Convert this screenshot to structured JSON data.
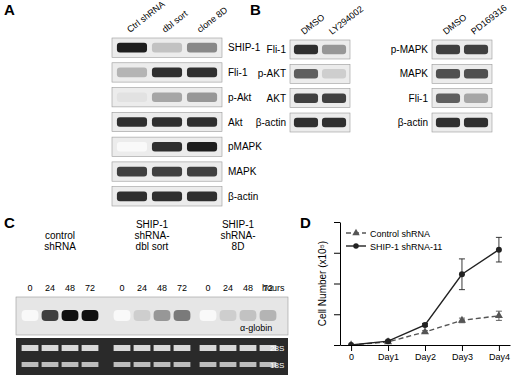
{
  "panels": {
    "A": {
      "label": "A",
      "lanes": [
        "Ctrl shRNA",
        "dbl sort",
        "clone 8D"
      ],
      "rows": [
        {
          "name": "SHIP-1",
          "bands": [
            0.9,
            0.35,
            0.55
          ]
        },
        {
          "name": "Fli-1",
          "bands": [
            0.4,
            0.85,
            0.85
          ]
        },
        {
          "name": "p-Akt",
          "bands": [
            0.2,
            0.45,
            0.5
          ]
        },
        {
          "name": "Akt",
          "bands": [
            0.85,
            0.85,
            0.85
          ]
        },
        {
          "name": "pMAPK",
          "bands": [
            0.05,
            0.85,
            0.9
          ]
        },
        {
          "name": "MAPK",
          "bands": [
            0.8,
            0.8,
            0.8
          ]
        },
        {
          "name": "β-actin",
          "bands": [
            0.85,
            0.85,
            0.85
          ]
        }
      ]
    },
    "B": {
      "label": "B",
      "blots": [
        {
          "lanes": [
            "DMSO",
            "LY294002"
          ],
          "rows": [
            {
              "name": "Fli-1",
              "bands": [
                0.85,
                0.5
              ]
            },
            {
              "name": "p-AKT",
              "bands": [
                0.7,
                0.3
              ]
            },
            {
              "name": "AKT",
              "bands": [
                0.8,
                0.8
              ]
            },
            {
              "name": "β-actin",
              "bands": [
                0.85,
                0.85
              ]
            }
          ]
        },
        {
          "lanes": [
            "DMSO",
            "PD169316"
          ],
          "rows": [
            {
              "name": "p-MAPK",
              "bands": [
                0.8,
                0.8
              ]
            },
            {
              "name": "MAPK",
              "bands": [
                0.75,
                0.75
              ]
            },
            {
              "name": "Fli-1",
              "bands": [
                0.7,
                0.45
              ]
            },
            {
              "name": "β-actin",
              "bands": [
                0.85,
                0.85
              ]
            }
          ]
        }
      ]
    },
    "C": {
      "label": "C",
      "groups": [
        {
          "title": [
            "control",
            "shRNA"
          ],
          "hours": [
            0,
            24,
            48,
            72
          ],
          "bands": [
            0.05,
            0.8,
            0.95,
            0.95
          ]
        },
        {
          "title": [
            "SHIP-1",
            "shRNA-",
            "dbl sort"
          ],
          "hours": [
            0,
            24,
            48,
            72
          ],
          "bands": [
            0.05,
            0.3,
            0.5,
            0.6
          ]
        },
        {
          "title": [
            "SHIP-1",
            "shRNA-",
            "8D"
          ],
          "hours": [
            0,
            24,
            48,
            72
          ],
          "bands": [
            0.05,
            0.3,
            0.35,
            0.4
          ]
        }
      ],
      "hours_label": "hours",
      "probe": "α-globin",
      "rrna": [
        "28S",
        "18S"
      ]
    },
    "D": {
      "label": "D"
    }
  },
  "chart_data": {
    "type": "line",
    "y_label": "Cell Number (x10⁵)",
    "categories": [
      "0",
      "Day1",
      "Day2",
      "Day3",
      "Day4"
    ],
    "series": [
      {
        "name": "Control shRNA",
        "color": "#555555",
        "marker": "triangle",
        "line_style": "dashed",
        "values": [
          0,
          2,
          8.5,
          16,
          19
        ],
        "errors": [
          0,
          0.5,
          0.8,
          1.5,
          3
        ]
      },
      {
        "name": "SHIP-1 shRNA-11",
        "color": "#222222",
        "marker": "circle",
        "line_style": "solid",
        "values": [
          0,
          2.5,
          13,
          46,
          62
        ],
        "errors": [
          0,
          0.5,
          1,
          10,
          8
        ]
      }
    ],
    "ylim": [
      0,
      80
    ],
    "yticks": [
      0,
      20,
      40,
      60,
      80
    ],
    "tick_labels": "x",
    "legend": "upper left",
    "grid": false
  }
}
